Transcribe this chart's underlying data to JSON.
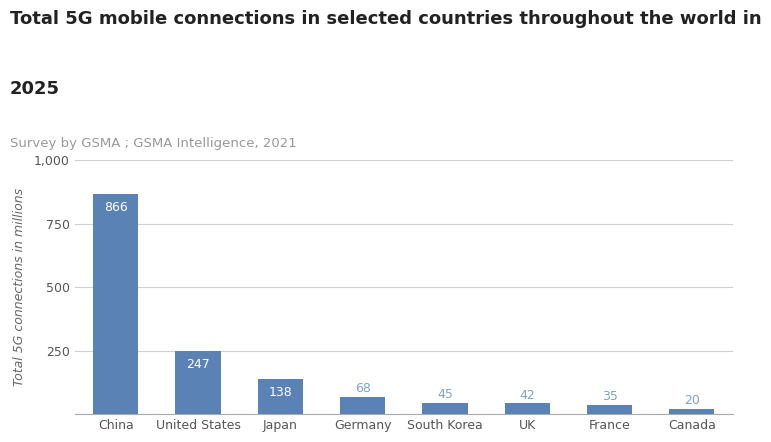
{
  "title_line1": "Total 5G mobile connections in selected countries throughout the world in",
  "title_line2": "2025",
  "subtitle": "Survey by GSMA ; GSMA Intelligence, 2021",
  "categories": [
    "China",
    "United States",
    "Japan",
    "Germany",
    "South Korea",
    "UK",
    "France",
    "Canada"
  ],
  "values": [
    866,
    247,
    138,
    68,
    45,
    42,
    35,
    20
  ],
  "bar_color": "#5b82b5",
  "label_color_white": "#ffffff",
  "label_color_blue": "#7aa3cc",
  "ylabel": "Total 5G connections in millions",
  "ylim": [
    0,
    1000
  ],
  "yticks": [
    0,
    250,
    500,
    750,
    1000
  ],
  "ytick_labels": [
    "",
    "250",
    "500",
    "750",
    "1,000"
  ],
  "grid_color": "#d0d0d0",
  "background_color": "#ffffff",
  "title_fontsize": 13,
  "subtitle_fontsize": 9.5,
  "ylabel_fontsize": 9,
  "bar_label_fontsize": 9,
  "tick_label_fontsize": 9,
  "white_label_threshold": 100
}
